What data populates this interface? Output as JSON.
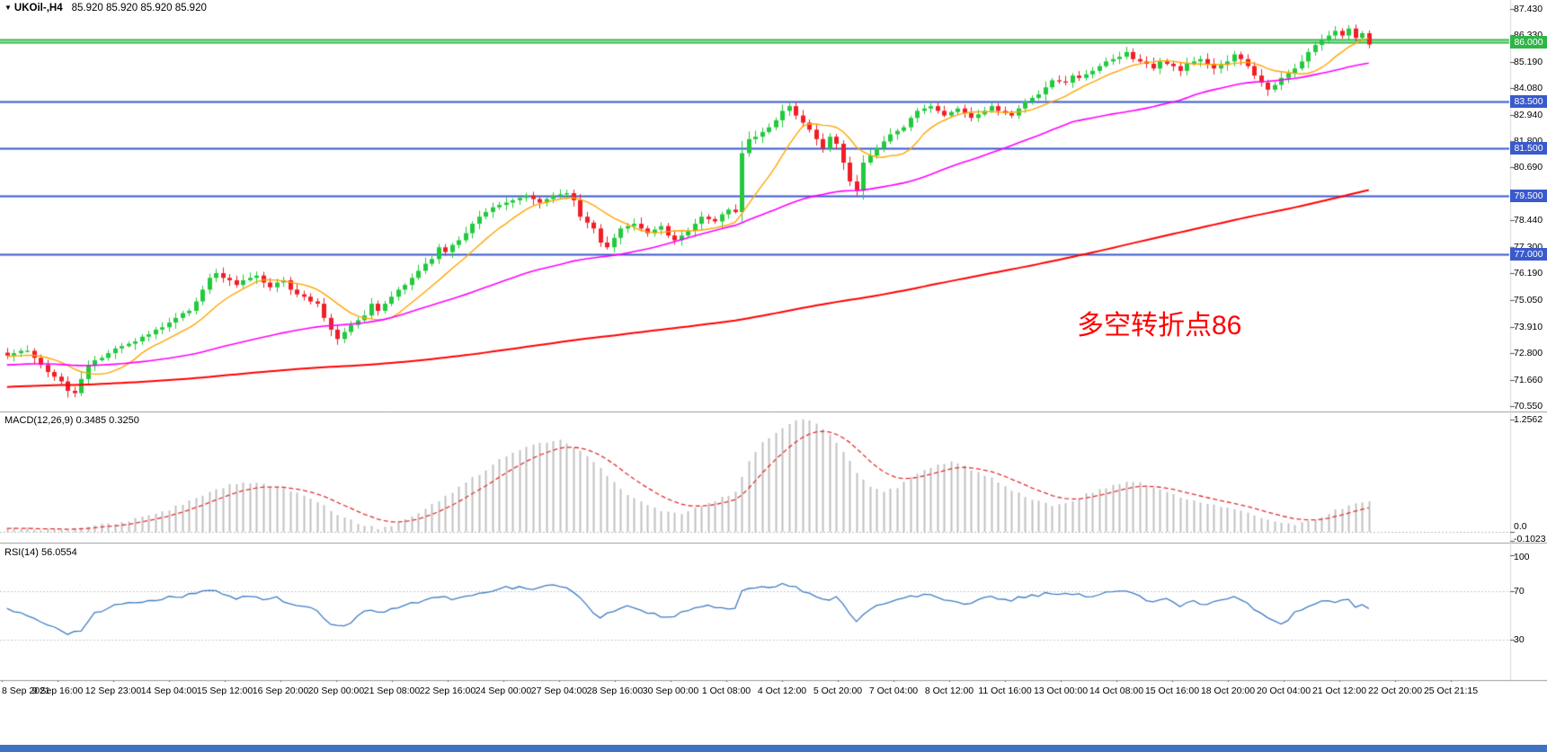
{
  "header": {
    "collapse_icon": "▼",
    "symbol": "UKOil-,H4",
    "quotes": "85.920 85.920 85.920 85.920"
  },
  "chart_data": {
    "type": "candlestick",
    "symbol": "UKOil-",
    "timeframe": "H4",
    "annotation": {
      "text": "多空转折点86",
      "color": "#ff0000"
    },
    "price_axis": {
      "min": 70.55,
      "max": 87.43,
      "ticks": [
        "87.430",
        "86.330",
        "85.190",
        "84.080",
        "82.940",
        "81.800",
        "80.690",
        "78.440",
        "77.300",
        "76.190",
        "75.050",
        "73.910",
        "72.800",
        "71.660",
        "70.550"
      ]
    },
    "hlines": [
      {
        "price": 86.15,
        "color": "#2eb547",
        "width": 2
      },
      {
        "price": 86.0,
        "color": "#2eb547",
        "width": 2,
        "tag": "86.000"
      },
      {
        "price": 83.5,
        "color": "#3a5acb",
        "width": 2,
        "tag": "83.500"
      },
      {
        "price": 81.5,
        "color": "#3a5acb",
        "width": 2,
        "tag": "81.500"
      },
      {
        "price": 79.5,
        "color": "#3a5acb",
        "width": 2,
        "tag": "79.500"
      },
      {
        "price": 77.0,
        "color": "#3a5acb",
        "width": 2,
        "tag": "77.000"
      }
    ],
    "colors": {
      "candle_up": "#22c93e",
      "candle_down": "#f01e28",
      "macd_histogram": "#c0c0c0",
      "macd_signal": "#e03131",
      "rsi_line": "#3f7cc4"
    },
    "moving_averages": [
      {
        "name": "ma-fast",
        "color": "#ffa500",
        "period": 10,
        "width": 1.4
      },
      {
        "name": "ma-medium",
        "color": "#ff00ff",
        "period": 50,
        "width": 1.6
      },
      {
        "name": "ma-slow",
        "color": "#ff0000",
        "period": 200,
        "width": 2
      }
    ],
    "closes": [
      72.7,
      72.8,
      72.9,
      72.9,
      72.6,
      72.3,
      72.0,
      71.8,
      71.6,
      71.2,
      71.1,
      71.7,
      72.3,
      72.5,
      72.6,
      72.8,
      73.0,
      73.1,
      73.2,
      73.3,
      73.5,
      73.6,
      73.8,
      73.9,
      74.1,
      74.3,
      74.5,
      74.6,
      75.0,
      75.5,
      76.0,
      76.2,
      76.0,
      75.9,
      75.7,
      75.9,
      76.0,
      76.1,
      75.8,
      75.6,
      75.8,
      75.9,
      75.5,
      75.3,
      75.2,
      75.0,
      74.9,
      74.3,
      73.8,
      73.4,
      73.7,
      74.0,
      74.2,
      74.4,
      74.9,
      74.6,
      74.9,
      75.2,
      75.5,
      75.7,
      76.0,
      76.3,
      76.6,
      76.8,
      77.3,
      77.1,
      77.4,
      77.6,
      77.9,
      78.3,
      78.6,
      78.8,
      79.0,
      79.1,
      79.2,
      79.3,
      79.4,
      79.5,
      79.35,
      79.2,
      79.35,
      79.5,
      79.55,
      79.6,
      79.3,
      78.6,
      78.35,
      78.1,
      77.5,
      77.3,
      77.7,
      78.1,
      78.2,
      78.3,
      78.1,
      77.9,
      78.05,
      78.2,
      77.8,
      77.6,
      77.8,
      78.0,
      78.3,
      78.6,
      78.5,
      78.4,
      78.7,
      78.9,
      78.8,
      81.3,
      81.9,
      82.0,
      82.2,
      82.4,
      82.7,
      83.1,
      83.3,
      82.9,
      82.6,
      82.3,
      81.9,
      81.5,
      82.0,
      81.7,
      80.9,
      80.1,
      79.7,
      80.9,
      81.2,
      81.5,
      81.8,
      82.1,
      82.25,
      82.4,
      82.8,
      83.1,
      83.2,
      83.3,
      83.1,
      82.9,
      83.05,
      83.2,
      83.0,
      82.8,
      82.95,
      83.1,
      83.3,
      83.1,
      83.0,
      82.9,
      83.2,
      83.5,
      83.65,
      83.8,
      84.1,
      84.4,
      84.35,
      84.3,
      84.6,
      84.5,
      84.65,
      84.8,
      85.0,
      85.2,
      85.3,
      85.4,
      85.6,
      85.3,
      85.2,
      85.1,
      84.9,
      85.2,
      85.1,
      85.0,
      84.8,
      85.1,
      85.2,
      85.3,
      85.1,
      84.9,
      85.05,
      85.2,
      85.5,
      85.3,
      85.0,
      84.6,
      84.3,
      84.0,
      84.2,
      84.5,
      84.7,
      84.9,
      85.2,
      85.6,
      85.9,
      86.1,
      86.3,
      86.5,
      86.3,
      86.6,
      86.2,
      86.4,
      85.92
    ],
    "macd": {
      "label": "MACD(12,26,9) 0.3485 0.3250",
      "current_macd": "0.3485",
      "current_signal": "0.3250",
      "axis_labels": [
        "1.2562",
        "0.0",
        "-0.1023"
      ],
      "points": [
        [
          0,
          0.05
        ],
        [
          4,
          0.03
        ],
        [
          8,
          0.02
        ],
        [
          12,
          0.06
        ],
        [
          16,
          0.1
        ],
        [
          20,
          0.16
        ],
        [
          24,
          0.25
        ],
        [
          28,
          0.38
        ],
        [
          31,
          0.48
        ],
        [
          34,
          0.54
        ],
        [
          37,
          0.55
        ],
        [
          40,
          0.5
        ],
        [
          43,
          0.44
        ],
        [
          46,
          0.33
        ],
        [
          49,
          0.2
        ],
        [
          52,
          0.1
        ],
        [
          55,
          0.04
        ],
        [
          58,
          0.09
        ],
        [
          61,
          0.2
        ],
        [
          64,
          0.35
        ],
        [
          67,
          0.5
        ],
        [
          70,
          0.65
        ],
        [
          73,
          0.8
        ],
        [
          76,
          0.92
        ],
        [
          79,
          1.0
        ],
        [
          82,
          1.02
        ],
        [
          84,
          0.95
        ],
        [
          86,
          0.85
        ],
        [
          88,
          0.7
        ],
        [
          90,
          0.55
        ],
        [
          92,
          0.42
        ],
        [
          94,
          0.33
        ],
        [
          96,
          0.27
        ],
        [
          98,
          0.22
        ],
        [
          100,
          0.21
        ],
        [
          102,
          0.26
        ],
        [
          104,
          0.32
        ],
        [
          106,
          0.38
        ],
        [
          108,
          0.45
        ],
        [
          110,
          0.8
        ],
        [
          112,
          1.0
        ],
        [
          114,
          1.12
        ],
        [
          116,
          1.22
        ],
        [
          118,
          1.2562
        ],
        [
          120,
          1.22
        ],
        [
          122,
          1.1
        ],
        [
          124,
          0.9
        ],
        [
          126,
          0.66
        ],
        [
          128,
          0.5
        ],
        [
          130,
          0.44
        ],
        [
          132,
          0.5
        ],
        [
          134,
          0.6
        ],
        [
          137,
          0.72
        ],
        [
          140,
          0.78
        ],
        [
          143,
          0.7
        ],
        [
          146,
          0.6
        ],
        [
          149,
          0.46
        ],
        [
          152,
          0.36
        ],
        [
          155,
          0.3
        ],
        [
          158,
          0.35
        ],
        [
          161,
          0.45
        ],
        [
          164,
          0.52
        ],
        [
          167,
          0.57
        ],
        [
          170,
          0.5
        ],
        [
          173,
          0.42
        ],
        [
          176,
          0.35
        ],
        [
          179,
          0.3
        ],
        [
          182,
          0.25
        ],
        [
          185,
          0.18
        ],
        [
          188,
          0.12
        ],
        [
          191,
          0.09
        ],
        [
          194,
          0.14
        ],
        [
          197,
          0.24
        ],
        [
          200,
          0.32
        ],
        [
          202,
          0.3485
        ]
      ]
    },
    "rsi": {
      "label": "RSI(14) 56.0554",
      "current": "56.0554",
      "levels": [
        "100",
        "70",
        "30"
      ],
      "points": [
        [
          0,
          55
        ],
        [
          3,
          50
        ],
        [
          6,
          42
        ],
        [
          9,
          35
        ],
        [
          11,
          38
        ],
        [
          13,
          52
        ],
        [
          16,
          58
        ],
        [
          20,
          62
        ],
        [
          24,
          65
        ],
        [
          28,
          68
        ],
        [
          30,
          72
        ],
        [
          32,
          68
        ],
        [
          34,
          64
        ],
        [
          36,
          66
        ],
        [
          38,
          62
        ],
        [
          40,
          64
        ],
        [
          42,
          60
        ],
        [
          44,
          58
        ],
        [
          46,
          55
        ],
        [
          48,
          42
        ],
        [
          50,
          40
        ],
        [
          52,
          50
        ],
        [
          54,
          55
        ],
        [
          56,
          52
        ],
        [
          58,
          57
        ],
        [
          60,
          60
        ],
        [
          62,
          63
        ],
        [
          64,
          66
        ],
        [
          66,
          63
        ],
        [
          68,
          66
        ],
        [
          70,
          69
        ],
        [
          72,
          71
        ],
        [
          74,
          73
        ],
        [
          76,
          74
        ],
        [
          78,
          72
        ],
        [
          80,
          74
        ],
        [
          82,
          75
        ],
        [
          84,
          70
        ],
        [
          86,
          58
        ],
        [
          88,
          48
        ],
        [
          90,
          54
        ],
        [
          92,
          57
        ],
        [
          94,
          54
        ],
        [
          96,
          52
        ],
        [
          98,
          48
        ],
        [
          100,
          52
        ],
        [
          102,
          56
        ],
        [
          104,
          58
        ],
        [
          106,
          55
        ],
        [
          108,
          57
        ],
        [
          109,
          70
        ],
        [
          111,
          72
        ],
        [
          113,
          74
        ],
        [
          115,
          76
        ],
        [
          117,
          73
        ],
        [
          119,
          68
        ],
        [
          121,
          62
        ],
        [
          123,
          66
        ],
        [
          125,
          52
        ],
        [
          126,
          45
        ],
        [
          128,
          56
        ],
        [
          130,
          60
        ],
        [
          132,
          62
        ],
        [
          134,
          65
        ],
        [
          136,
          68
        ],
        [
          138,
          65
        ],
        [
          140,
          62
        ],
        [
          142,
          60
        ],
        [
          144,
          63
        ],
        [
          146,
          65
        ],
        [
          148,
          62
        ],
        [
          150,
          64
        ],
        [
          152,
          66
        ],
        [
          154,
          68
        ],
        [
          156,
          66
        ],
        [
          158,
          68
        ],
        [
          160,
          66
        ],
        [
          162,
          68
        ],
        [
          164,
          70
        ],
        [
          166,
          71
        ],
        [
          168,
          65
        ],
        [
          170,
          60
        ],
        [
          172,
          63
        ],
        [
          174,
          58
        ],
        [
          176,
          61
        ],
        [
          178,
          59
        ],
        [
          180,
          62
        ],
        [
          182,
          65
        ],
        [
          184,
          60
        ],
        [
          186,
          52
        ],
        [
          188,
          45
        ],
        [
          189,
          42
        ],
        [
          191,
          52
        ],
        [
          193,
          58
        ],
        [
          195,
          62
        ],
        [
          197,
          60
        ],
        [
          199,
          63
        ],
        [
          200,
          58
        ],
        [
          201,
          60
        ],
        [
          202,
          56.06
        ]
      ]
    },
    "time_axis": [
      "8 Sep 2021",
      "9 Sep 16:00",
      "12 Sep 23:00",
      "14 Sep 04:00",
      "15 Sep 12:00",
      "16 Sep 20:00",
      "20 Sep 00:00",
      "21 Sep 08:00",
      "22 Sep 16:00",
      "24 Sep 00:00",
      "27 Sep 04:00",
      "28 Sep 16:00",
      "30 Sep 00:00",
      "1 Oct 08:00",
      "4 Oct 12:00",
      "5 Oct 20:00",
      "7 Oct 04:00",
      "8 Oct 12:00",
      "11 Oct 16:00",
      "13 Oct 00:00",
      "14 Oct 08:00",
      "15 Oct 16:00",
      "18 Oct 20:00",
      "20 Oct 04:00",
      "21 Oct 12:00",
      "22 Oct 20:00",
      "25 Oct 21:15"
    ]
  }
}
